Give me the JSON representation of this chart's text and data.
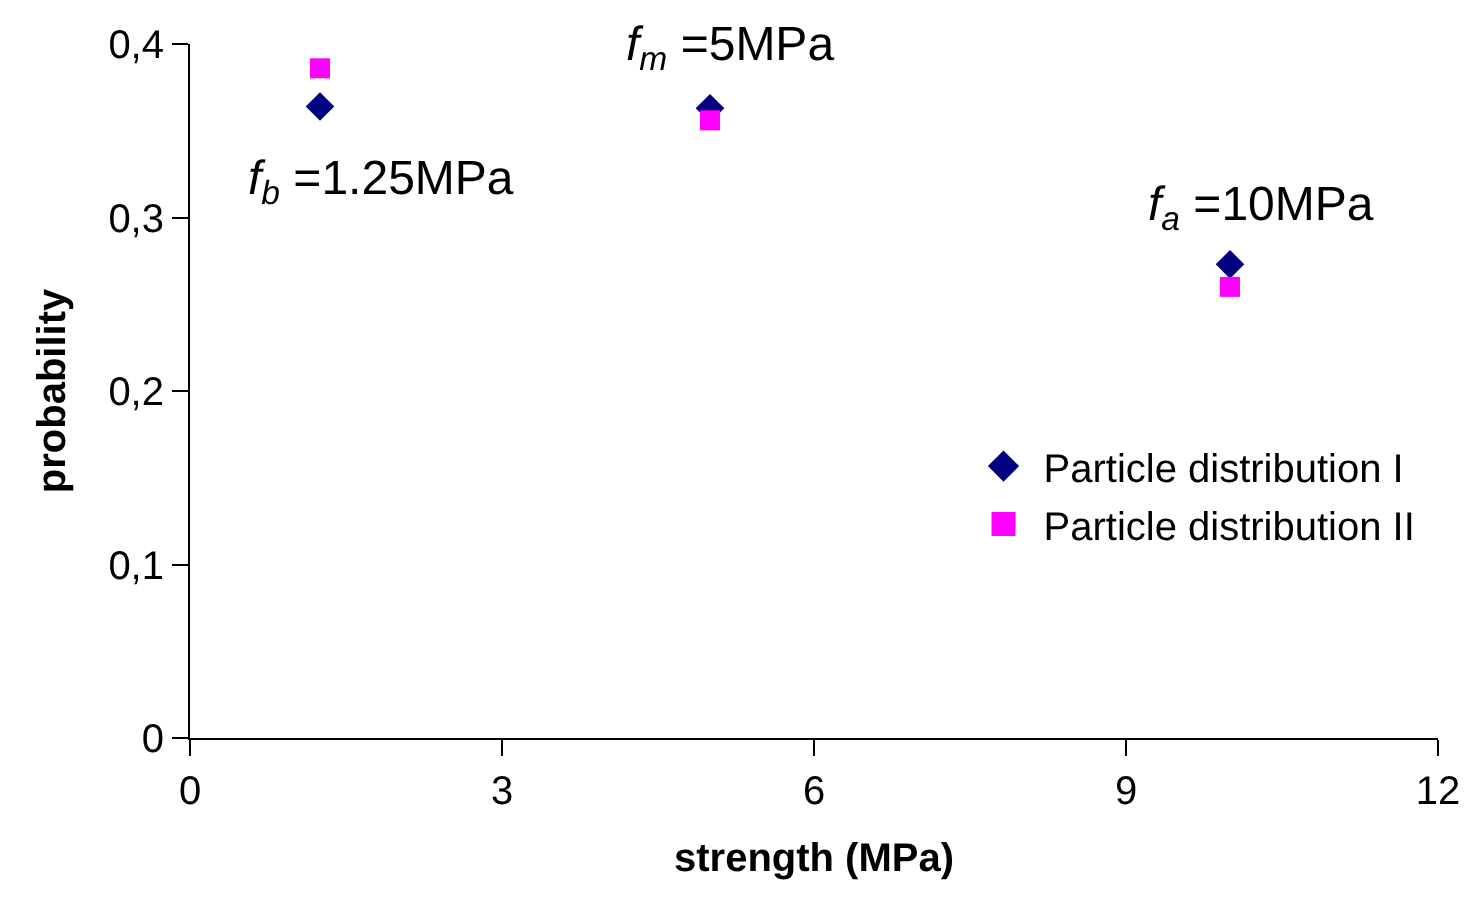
{
  "chart_data": {
    "type": "scatter",
    "xlabel": "strength (MPa)",
    "ylabel": "probability",
    "xlim": [
      0,
      12
    ],
    "xticks": [
      0,
      3,
      6,
      9,
      12
    ],
    "ylim": [
      0,
      0.4
    ],
    "yticks": [
      {
        "value": 0,
        "label": "0"
      },
      {
        "value": 0.1,
        "label": "0,1"
      },
      {
        "value": 0.2,
        "label": "0,2"
      },
      {
        "value": 0.3,
        "label": "0,3"
      },
      {
        "value": 0.4,
        "label": "0,4"
      }
    ],
    "legend": "right",
    "series": [
      {
        "name": "Particle distribution I",
        "color": "#000080",
        "marker": "diamond",
        "x": [
          1.25,
          5,
          10
        ],
        "values": [
          0.364,
          0.363,
          0.273
        ]
      },
      {
        "name": "Particle distribution II",
        "color": "#ff00ff",
        "marker": "square",
        "x": [
          1.25,
          5,
          10
        ],
        "values": [
          0.386,
          0.356,
          0.26
        ]
      }
    ],
    "annotations": [
      "f$_{b}$ =1.25MPa",
      "f$_{m}$ =5MPa",
      "f$_{a}$ =10MPa"
    ]
  }
}
